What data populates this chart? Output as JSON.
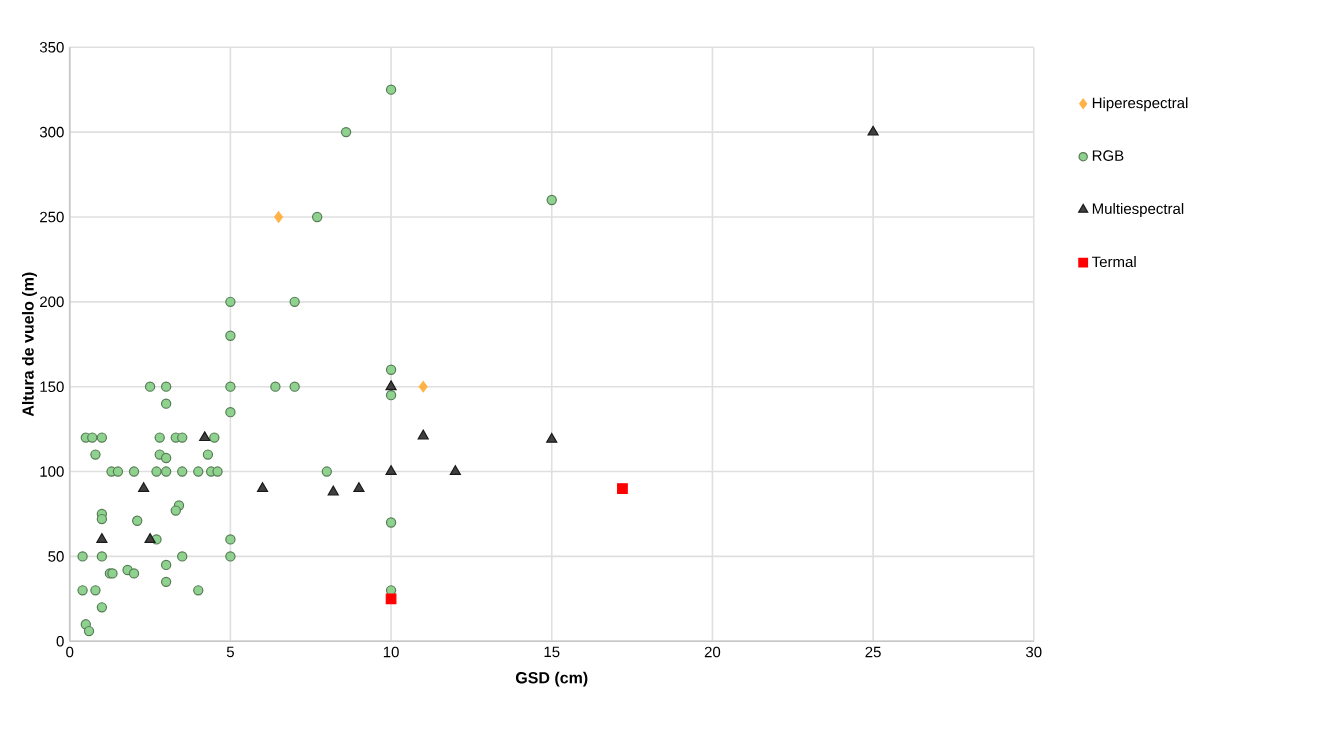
{
  "chart_data": {
    "type": "scatter",
    "xlabel": "GSD (cm)",
    "ylabel": "Altura de vuelo (m)",
    "xlim": [
      0,
      30
    ],
    "xticks": [
      0,
      5,
      10,
      15,
      20,
      25,
      30
    ],
    "ylim": [
      0,
      350
    ],
    "yticks": [
      0,
      50,
      100,
      150,
      200,
      250,
      300,
      350
    ],
    "grid": true,
    "legend": "right",
    "series": [
      {
        "name": "Hiperespectral",
        "color": "#ffb347",
        "marker": "diamond",
        "x": [
          6.5,
          11
        ],
        "values": [
          250,
          150
        ]
      },
      {
        "name": "RGB",
        "color": "#8fd18f",
        "marker": "circle",
        "x": [
          10,
          2.5,
          3,
          5,
          6.4,
          7,
          10,
          3,
          5,
          0.5,
          0.7,
          1,
          2.8,
          3.3,
          3.5,
          4.5,
          0.8,
          2.8,
          3,
          4.3,
          1.3,
          1.5,
          2,
          2.7,
          3,
          3.5,
          4,
          4.4,
          4.6,
          8,
          3.4,
          3.3,
          1,
          1,
          2.1,
          2.7,
          5,
          10,
          0.4,
          1,
          3.5,
          5,
          1.25,
          1.33,
          1.8,
          2,
          3,
          3,
          0.4,
          0.8,
          4,
          10,
          1,
          0.5,
          0.6,
          10,
          8.6,
          7.7,
          5,
          7,
          5,
          15
        ],
        "values": [
          160,
          150,
          150,
          150,
          150,
          150,
          145,
          140,
          135,
          120,
          120,
          120,
          120,
          120,
          120,
          120,
          110,
          110,
          108,
          110,
          100,
          100,
          100,
          100,
          100,
          100,
          100,
          100,
          100,
          100,
          80,
          77,
          75,
          72,
          71,
          60,
          60,
          70,
          50,
          50,
          50,
          50,
          40,
          40,
          42,
          40,
          45,
          35,
          30,
          30,
          30,
          30,
          20,
          10,
          6,
          325,
          300,
          250,
          200,
          200,
          180,
          260
        ]
      },
      {
        "name": "Multiespectral",
        "color": "#404040",
        "marker": "triangle",
        "x": [
          10,
          11,
          15,
          10,
          12,
          4.2,
          2.3,
          6,
          8.2,
          9,
          1,
          2.5,
          25
        ],
        "values": [
          150,
          121,
          119,
          100,
          100,
          120,
          90,
          90,
          88,
          90,
          60,
          60,
          300
        ]
      },
      {
        "name": "Termal",
        "color": "#ff0000",
        "marker": "square",
        "x": [
          17.2,
          10
        ],
        "values": [
          90,
          25
        ]
      }
    ]
  }
}
